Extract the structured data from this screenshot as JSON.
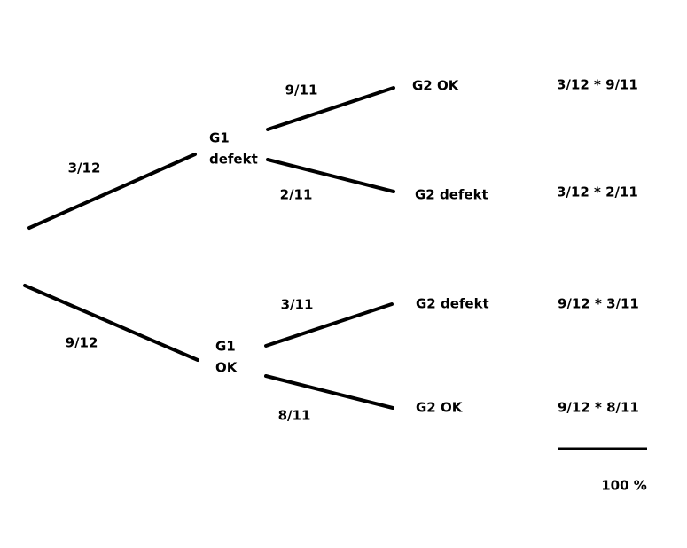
{
  "edges": [
    {
      "label": "3/12"
    },
    {
      "label": "9/12"
    },
    {
      "label": "9/11"
    },
    {
      "label": "2/11"
    },
    {
      "label": "3/11"
    },
    {
      "label": "8/11"
    }
  ],
  "nodes": [
    {
      "label": [
        "G1",
        "defekt"
      ]
    },
    {
      "label": [
        "G1",
        "OK"
      ]
    },
    {
      "label": [
        "G2 OK"
      ]
    },
    {
      "label": [
        "G2 defekt"
      ]
    },
    {
      "label": [
        "G2 defekt"
      ]
    },
    {
      "label": [
        "G2 OK"
      ]
    }
  ],
  "products": [
    "3/12 * 9/11",
    "3/12 * 2/11",
    "9/12 * 3/11",
    "9/12 * 8/11"
  ],
  "total": "100 %"
}
